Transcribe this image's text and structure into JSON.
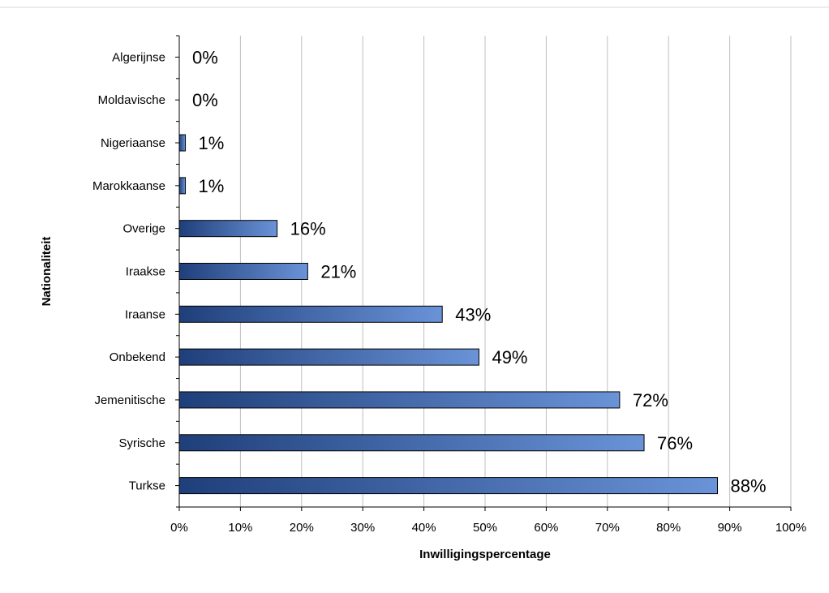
{
  "chart_data": {
    "type": "bar",
    "orientation": "horizontal",
    "categories": [
      "Algerijnse",
      "Moldavische",
      "Nigeriaanse",
      "Marokkaanse",
      "Overige",
      "Iraakse",
      "Iraanse",
      "Onbekend",
      "Jemenitische",
      "Syrische",
      "Turkse"
    ],
    "values": [
      0,
      0,
      1,
      1,
      16,
      21,
      43,
      49,
      72,
      76,
      88
    ],
    "data_labels": [
      "0%",
      "0%",
      "1%",
      "1%",
      "16%",
      "21%",
      "43%",
      "49%",
      "72%",
      "76%",
      "88%"
    ],
    "x_ticks": [
      0,
      10,
      20,
      30,
      40,
      50,
      60,
      70,
      80,
      90,
      100
    ],
    "x_tick_labels": [
      "0%",
      "10%",
      "20%",
      "30%",
      "40%",
      "50%",
      "60%",
      "70%",
      "80%",
      "90%",
      "100%"
    ],
    "xlim": [
      0,
      100
    ],
    "xlabel": "Inwilligingspercentage",
    "ylabel": "Nationaliteit",
    "grid": "vertical",
    "legend": "none",
    "colors": {
      "bar_dark": "#1f3f7a",
      "bar_light": "#6a93d8",
      "grid": "#bfbfbf",
      "axis": "#000000"
    }
  }
}
